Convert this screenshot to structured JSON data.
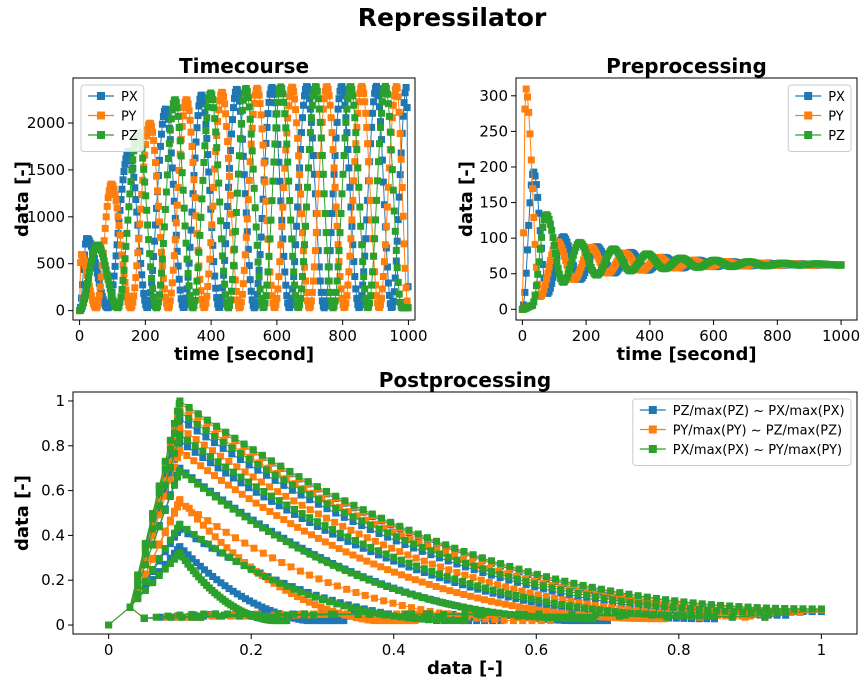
{
  "figure": {
    "title": "Repressilator"
  },
  "colors": {
    "PX": "#1f77b4",
    "PY": "#ff7f0e",
    "PZ": "#2ca02c"
  },
  "chart_data": [
    {
      "id": "timecourse",
      "type": "line",
      "title": "Timecourse",
      "xlabel": "time [second]",
      "ylabel": "data [-]",
      "xlim": [
        -20,
        1020
      ],
      "ylim": [
        -100,
        2480
      ],
      "xticks": [
        0,
        200,
        400,
        600,
        800,
        1000
      ],
      "yticks": [
        0,
        500,
        1000,
        1500,
        2000
      ],
      "legend": "upper-left",
      "marker": "square",
      "series": [
        {
          "name": "PX",
          "peaks": [
            [
              22,
              770
            ],
            [
              150,
              1700
            ],
            [
              262,
              2150
            ],
            [
              371,
              2300
            ],
            [
              478,
              2360
            ],
            [
              585,
              2380
            ],
            [
              691,
              2390
            ],
            [
              797,
              2390
            ],
            [
              903,
              2390
            ],
            [
              995,
              2390
            ]
          ],
          "trough": 30
        },
        {
          "name": "PY",
          "peaks": [
            [
              4,
              600
            ],
            [
              97,
              1350
            ],
            [
              214,
              2000
            ],
            [
              325,
              2250
            ],
            [
              433,
              2330
            ],
            [
              540,
              2370
            ],
            [
              646,
              2385
            ],
            [
              752,
              2390
            ],
            [
              858,
              2390
            ],
            [
              964,
              2390
            ]
          ],
          "trough": 30
        },
        {
          "name": "PZ",
          "peaks": [
            [
              54,
              700
            ],
            [
              178,
              1900
            ],
            [
              290,
              2250
            ],
            [
              399,
              2320
            ],
            [
              506,
              2370
            ],
            [
              612,
              2385
            ],
            [
              718,
              2390
            ],
            [
              824,
              2390
            ],
            [
              930,
              2390
            ]
          ],
          "trough": 30
        }
      ]
    },
    {
      "id": "preprocessing",
      "type": "line",
      "title": "Preprocessing",
      "xlabel": "time [second]",
      "ylabel": "data [-]",
      "xlim": [
        -20,
        1050
      ],
      "ylim": [
        -15,
        325
      ],
      "xticks": [
        0,
        200,
        400,
        600,
        800,
        1000
      ],
      "yticks": [
        0,
        50,
        100,
        150,
        200,
        250,
        300
      ],
      "legend": "upper-right",
      "marker": "square",
      "equilibrium": 63,
      "series": [
        {
          "name": "PX",
          "peaks": [
            [
              35,
              193
            ],
            [
              128,
              102
            ],
            [
              233,
              88
            ],
            [
              339,
              80
            ],
            [
              445,
              73
            ],
            [
              551,
              69
            ],
            [
              657,
              67
            ],
            [
              763,
              65
            ],
            [
              869,
              64
            ],
            [
              975,
              63
            ]
          ],
          "troughs": [
            [
              0,
              0
            ],
            [
              78,
              22
            ],
            [
              180,
              42
            ],
            [
              287,
              51
            ],
            [
              393,
              55
            ],
            [
              499,
              58
            ],
            [
              605,
              60
            ],
            [
              711,
              61
            ],
            [
              817,
              62
            ],
            [
              923,
              62
            ]
          ]
        },
        {
          "name": "PY",
          "peaks": [
            [
              10,
              311
            ],
            [
              110,
              95
            ],
            [
              215,
              87
            ],
            [
              321,
              79
            ],
            [
              427,
              73
            ],
            [
              533,
              69
            ],
            [
              639,
              67
            ],
            [
              745,
              65
            ],
            [
              851,
              64
            ],
            [
              957,
              63
            ]
          ],
          "troughs": [
            [
              0,
              0
            ],
            [
              55,
              18
            ],
            [
              162,
              42
            ],
            [
              268,
              51
            ],
            [
              374,
              55
            ],
            [
              480,
              58
            ],
            [
              586,
              60
            ],
            [
              692,
              61
            ],
            [
              798,
              62
            ],
            [
              904,
              62
            ]
          ]
        },
        {
          "name": "PZ",
          "peaks": [
            [
              75,
              133
            ],
            [
              180,
              94
            ],
            [
              286,
              85
            ],
            [
              392,
              78
            ],
            [
              498,
              72
            ],
            [
              604,
              69
            ],
            [
              710,
              67
            ],
            [
              816,
              65
            ],
            [
              922,
              64
            ]
          ],
          "troughs": [
            [
              0,
              0
            ],
            [
              30,
              5
            ],
            [
              128,
              38
            ],
            [
              233,
              48
            ],
            [
              339,
              54
            ],
            [
              445,
              57
            ],
            [
              551,
              59
            ],
            [
              657,
              60
            ],
            [
              763,
              61
            ],
            [
              869,
              62
            ],
            [
              1000,
              62
            ]
          ]
        }
      ]
    },
    {
      "id": "postprocessing",
      "type": "line",
      "title": "Postprocessing",
      "xlabel": "data [-]",
      "ylabel": "data [-]",
      "xlim": [
        -0.05,
        1.05
      ],
      "ylim": [
        -0.04,
        1.04
      ],
      "xticks": [
        0.0,
        0.2,
        0.4,
        0.6,
        0.8,
        1.0
      ],
      "yticks": [
        0.0,
        0.2,
        0.4,
        0.6,
        0.8,
        1.0
      ],
      "legend": "upper-right",
      "marker": "square",
      "series": [
        {
          "name": "PZ/max(PZ) ~ PX/max(PX)",
          "loops": [
            [
              0.33,
              0.35,
              0.07
            ],
            [
              0.55,
              0.43,
              0.1
            ],
            [
              0.7,
              0.7,
              0.2
            ],
            [
              0.85,
              0.82,
              0.35
            ],
            [
              0.95,
              0.92,
              0.55
            ],
            [
              1.0,
              0.99,
              0.75
            ]
          ]
        },
        {
          "name": "PY/max(PY) ~ PZ/max(PZ)",
          "loops": [
            [
              0.43,
              0.56,
              0.08
            ],
            [
              0.62,
              0.55,
              0.2
            ],
            [
              0.78,
              0.78,
              0.35
            ],
            [
              0.9,
              0.88,
              0.5
            ],
            [
              0.97,
              0.96,
              0.7
            ],
            [
              1.0,
              0.99,
              0.85
            ]
          ]
        },
        {
          "name": "PX/max(PX) ~ PY/max(PY)",
          "loops": [
            [
              0.25,
              0.32,
              0.2
            ],
            [
              0.5,
              0.45,
              0.25
            ],
            [
              0.68,
              0.69,
              0.35
            ],
            [
              0.85,
              0.85,
              0.5
            ],
            [
              0.95,
              0.95,
              0.7
            ],
            [
              1.0,
              1.0,
              0.9
            ]
          ]
        }
      ]
    }
  ]
}
